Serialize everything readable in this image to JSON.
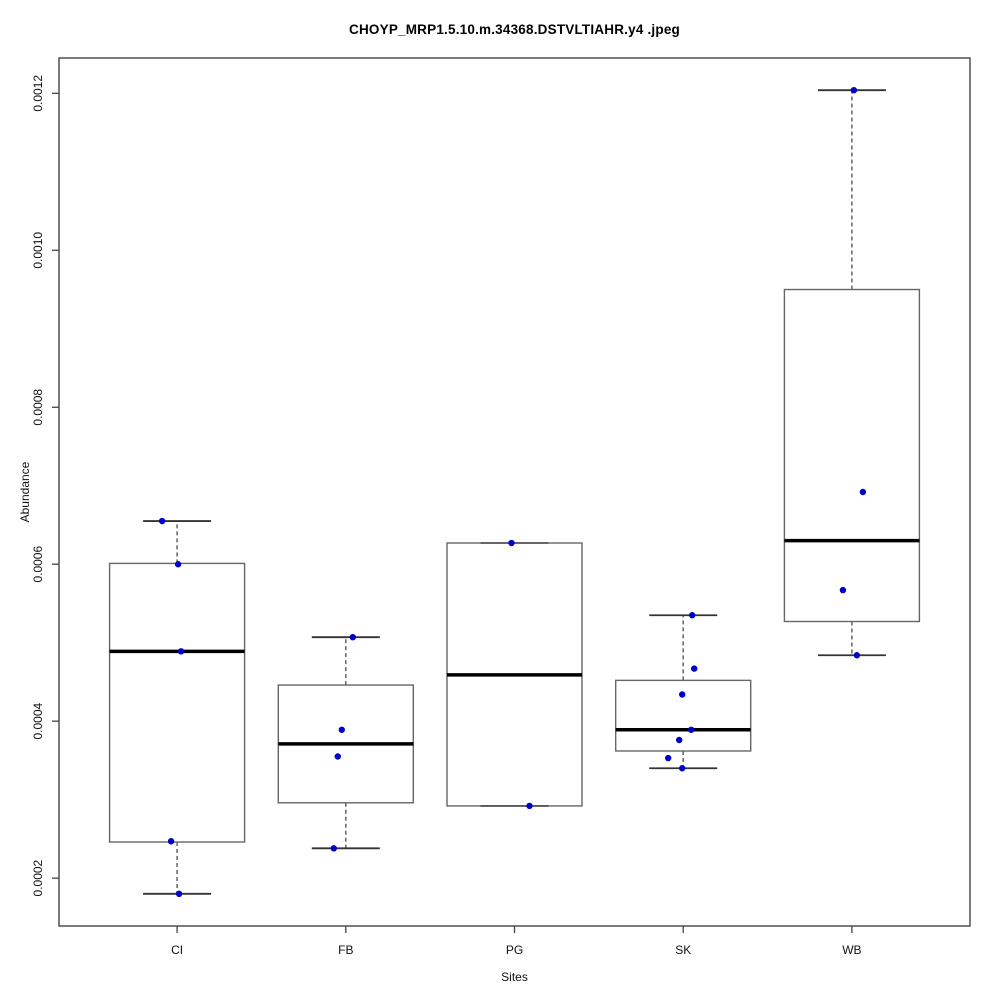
{
  "chart_data": {
    "type": "boxplot",
    "title": "CHOYP_MRP1.5.10.m.34368.DSTVLTIAHR.y4 .jpeg",
    "xlabel": "Sites",
    "ylabel": "Abundance",
    "categories": [
      "CI",
      "FB",
      "PG",
      "SK",
      "WB"
    ],
    "xlim": [
      0.3,
      5.7
    ],
    "ylim": [
      0.000139,
      0.001245
    ],
    "grid": false,
    "legend_position": "none",
    "y_ticks": [
      0.0002,
      0.0004,
      0.0006,
      0.0008,
      0.001,
      0.0012
    ],
    "y_tick_labels": [
      "0.0002",
      "0.0004",
      "0.0006",
      "0.0008",
      "0.0010",
      "0.0012"
    ],
    "boxes": [
      {
        "category": "CI",
        "position": 1,
        "whisker_low": 0.00018,
        "q1": 0.000246,
        "median": 0.000489,
        "q3": 0.000601,
        "whisker_high": 0.000655
      },
      {
        "category": "FB",
        "position": 2,
        "whisker_low": 0.000238,
        "q1": 0.000296,
        "median": 0.000371,
        "q3": 0.000446,
        "whisker_high": 0.000507
      },
      {
        "category": "PG",
        "position": 3,
        "whisker_low": 0.000292,
        "q1": 0.000292,
        "median": 0.000459,
        "q3": 0.000627,
        "whisker_high": 0.000627
      },
      {
        "category": "SK",
        "position": 4,
        "whisker_low": 0.00034,
        "q1": 0.000362,
        "median": 0.000389,
        "q3": 0.000452,
        "whisker_high": 0.000535
      },
      {
        "category": "WB",
        "position": 5,
        "whisker_low": 0.000484,
        "q1": 0.000527,
        "median": 0.00063,
        "q3": 0.00095,
        "whisker_high": 0.001204
      }
    ],
    "points": [
      {
        "category": "CI",
        "value": 0.000655,
        "dx": -15
      },
      {
        "category": "CI",
        "value": 0.0006,
        "dx": 1
      },
      {
        "category": "CI",
        "value": 0.000489,
        "dx": 4
      },
      {
        "category": "CI",
        "value": 0.000247,
        "dx": -6
      },
      {
        "category": "CI",
        "value": 0.00018,
        "dx": 2
      },
      {
        "category": "FB",
        "value": 0.000507,
        "dx": 7
      },
      {
        "category": "FB",
        "value": 0.000389,
        "dx": -4
      },
      {
        "category": "FB",
        "value": 0.000355,
        "dx": -8
      },
      {
        "category": "FB",
        "value": 0.000238,
        "dx": -12
      },
      {
        "category": "PG",
        "value": 0.000627,
        "dx": -3
      },
      {
        "category": "PG",
        "value": 0.000292,
        "dx": 15
      },
      {
        "category": "SK",
        "value": 0.000535,
        "dx": 9
      },
      {
        "category": "SK",
        "value": 0.000467,
        "dx": 11
      },
      {
        "category": "SK",
        "value": 0.000434,
        "dx": -1
      },
      {
        "category": "SK",
        "value": 0.000389,
        "dx": 8
      },
      {
        "category": "SK",
        "value": 0.000376,
        "dx": -4
      },
      {
        "category": "SK",
        "value": 0.000353,
        "dx": -15
      },
      {
        "category": "SK",
        "value": 0.00034,
        "dx": -1
      },
      {
        "category": "WB",
        "value": 0.001204,
        "dx": 2
      },
      {
        "category": "WB",
        "value": 0.000692,
        "dx": 11
      },
      {
        "category": "WB",
        "value": 0.000567,
        "dx": -9
      },
      {
        "category": "WB",
        "value": 0.000484,
        "dx": 5
      }
    ],
    "colors": {
      "background": "#ffffff",
      "point": "#0000cc",
      "median": "#000000",
      "box": "#666666",
      "whisker": "#6e6e6e",
      "cap": "#333333",
      "axis": "#444444",
      "text": "#111111"
    }
  }
}
